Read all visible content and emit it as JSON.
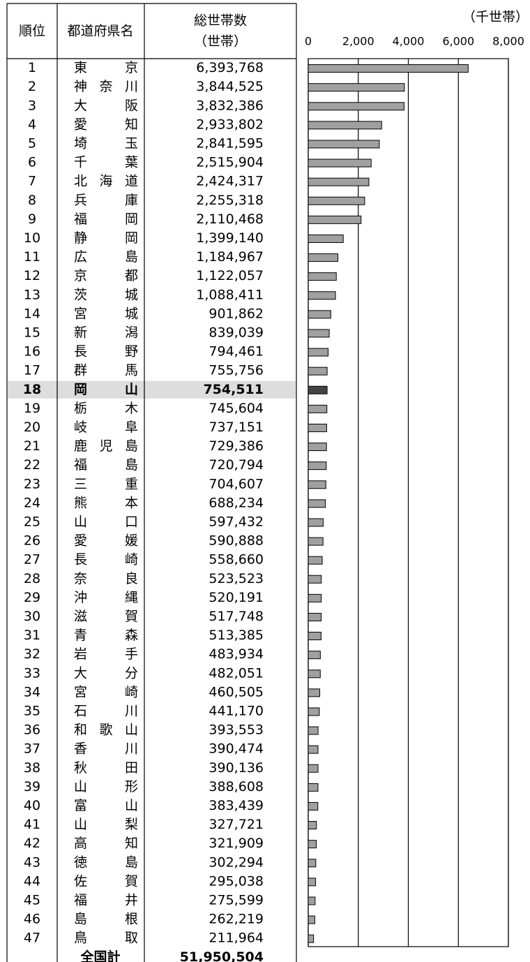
{
  "headers": {
    "rank": "順位",
    "name": "都道府県名",
    "total": "総世帯数",
    "total_unit": "（世帯）"
  },
  "chart_data": {
    "type": "bar",
    "orientation": "horizontal",
    "x_label": "（千世帯）",
    "xlim": [
      0,
      8000
    ],
    "xticks": [
      0,
      {
        "value": 2000,
        "label": "2,000"
      },
      {
        "value": 4000,
        "label": "4,000"
      },
      {
        "value": 6000,
        "label": "6,000"
      },
      {
        "value": 8000,
        "label": "8,000"
      }
    ],
    "grid": true,
    "color": "#a0a0a0",
    "highlight_index": 17,
    "highlight_color": "#444444",
    "highlight_row_color": "#dddddd",
    "ranks": [
      1,
      2,
      3,
      4,
      5,
      6,
      7,
      8,
      9,
      10,
      11,
      12,
      13,
      14,
      15,
      16,
      17,
      18,
      19,
      20,
      21,
      22,
      23,
      24,
      25,
      26,
      27,
      28,
      29,
      30,
      31,
      32,
      33,
      34,
      35,
      36,
      37,
      38,
      39,
      40,
      41,
      42,
      43,
      44,
      45,
      46,
      47
    ],
    "categories": [
      "東京",
      "神奈川",
      "大阪",
      "愛知",
      "埼玉",
      "千葉",
      "北海道",
      "兵庫",
      "福岡",
      "静岡",
      "広島",
      "京都",
      "茨城",
      "宮城",
      "新潟",
      "長野",
      "群馬",
      "岡山",
      "栃木",
      "岐阜",
      "鹿児島",
      "福島",
      "三重",
      "熊本",
      "山口",
      "愛媛",
      "長崎",
      "奈良",
      "沖縄",
      "滋賀",
      "青森",
      "岩手",
      "大分",
      "宮崎",
      "石川",
      "和歌山",
      "香川",
      "秋田",
      "山形",
      "富山",
      "山梨",
      "高知",
      "徳島",
      "佐賀",
      "福井",
      "島根",
      "鳥取"
    ],
    "values": [
      6393.768,
      3844.525,
      3832.386,
      2933.802,
      2841.595,
      2515.904,
      2424.317,
      2255.318,
      2110.468,
      1399.14,
      1184.967,
      1122.057,
      1088.411,
      901.862,
      839.039,
      794.461,
      755.756,
      754.511,
      745.604,
      737.151,
      729.386,
      720.794,
      704.607,
      688.234,
      597.432,
      590.888,
      558.66,
      523.523,
      520.191,
      517.748,
      513.385,
      483.934,
      482.051,
      460.505,
      441.17,
      393.553,
      390.474,
      390.136,
      388.608,
      383.439,
      327.721,
      321.909,
      302.294,
      295.038,
      275.599,
      262.219,
      211.964
    ],
    "value_labels": [
      "6,393,768",
      "3,844,525",
      "3,832,386",
      "2,933,802",
      "2,841,595",
      "2,515,904",
      "2,424,317",
      "2,255,318",
      "2,110,468",
      "1,399,140",
      "1,184,967",
      "1,122,057",
      "1,088,411",
      "901,862",
      "839,039",
      "794,461",
      "755,756",
      "754,511",
      "745,604",
      "737,151",
      "729,386",
      "720,794",
      "704,607",
      "688,234",
      "597,432",
      "590,888",
      "558,660",
      "523,523",
      "520,191",
      "517,748",
      "513,385",
      "483,934",
      "482,051",
      "460,505",
      "441,170",
      "393,553",
      "390,474",
      "390,136",
      "388,608",
      "383,439",
      "327,721",
      "321,909",
      "302,294",
      "295,038",
      "275,599",
      "262,219",
      "211,964"
    ],
    "total_label": "全国計",
    "total_value": "51,950,504"
  }
}
